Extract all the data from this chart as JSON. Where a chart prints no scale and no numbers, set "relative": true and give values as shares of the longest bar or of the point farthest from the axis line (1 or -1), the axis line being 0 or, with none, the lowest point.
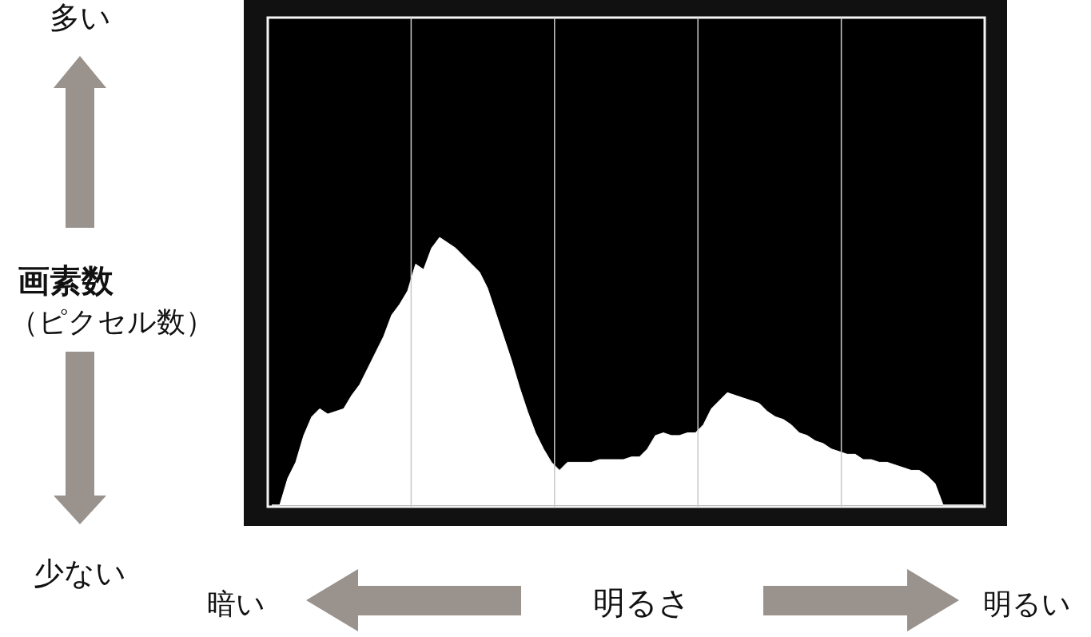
{
  "chart_data": {
    "type": "area",
    "relative": true,
    "xlabel": "明るさ",
    "ylabel": "**画素数**（ピクセル数）",
    "grid": "x",
    "annotations": [
      "多い",
      "少ない",
      "暗い",
      "明るい"
    ],
    "categories": [
      null,
      null,
      null,
      null,
      null,
      null,
      null,
      null,
      null,
      null,
      null,
      null,
      null,
      null,
      null,
      null,
      null,
      null,
      null,
      null,
      null,
      null,
      null,
      null,
      null,
      null,
      null,
      null,
      null,
      null,
      null,
      null,
      null,
      null,
      null,
      null,
      null,
      null,
      null,
      null,
      null,
      null,
      null,
      null,
      null,
      null,
      null,
      null,
      null,
      null,
      null,
      null,
      null,
      null,
      null,
      null,
      null,
      null,
      null,
      null,
      null,
      null,
      null,
      null,
      null,
      null,
      null,
      null,
      null,
      null,
      null,
      null,
      null,
      null,
      null,
      null,
      null,
      null,
      null,
      null,
      null,
      null,
      null,
      null,
      null,
      null,
      null,
      null,
      null,
      null
    ],
    "series": [
      {
        "color": "#ffffff",
        "values": [
          0,
          0,
          0.1,
          0.16,
          0.26,
          0.33,
          0.36,
          0.34,
          0.35,
          0.36,
          0.41,
          0.45,
          0.51,
          0.57,
          0.63,
          0.71,
          0.75,
          0.8,
          0.9,
          0.88,
          0.96,
          1,
          0.98,
          0.96,
          0.93,
          0.9,
          0.87,
          0.81,
          0.72,
          0.63,
          0.54,
          0.44,
          0.35,
          0.27,
          0.21,
          0.16,
          0.13,
          0.16,
          0.16,
          0.16,
          0.16,
          0.17,
          0.17,
          0.17,
          0.17,
          0.18,
          0.18,
          0.21,
          0.26,
          0.27,
          0.26,
          0.26,
          0.27,
          0.27,
          0.3,
          0.36,
          0.39,
          0.42,
          0.41,
          0.4,
          0.39,
          0.38,
          0.35,
          0.33,
          0.32,
          0.3,
          0.27,
          0.26,
          0.24,
          0.23,
          0.21,
          0.2,
          0.19,
          0.19,
          0.17,
          0.17,
          0.16,
          0.16,
          0.15,
          0.14,
          0.13,
          0.13,
          0.11,
          0.08,
          0,
          0,
          0,
          0,
          0,
          0
        ]
      }
    ]
  }
}
